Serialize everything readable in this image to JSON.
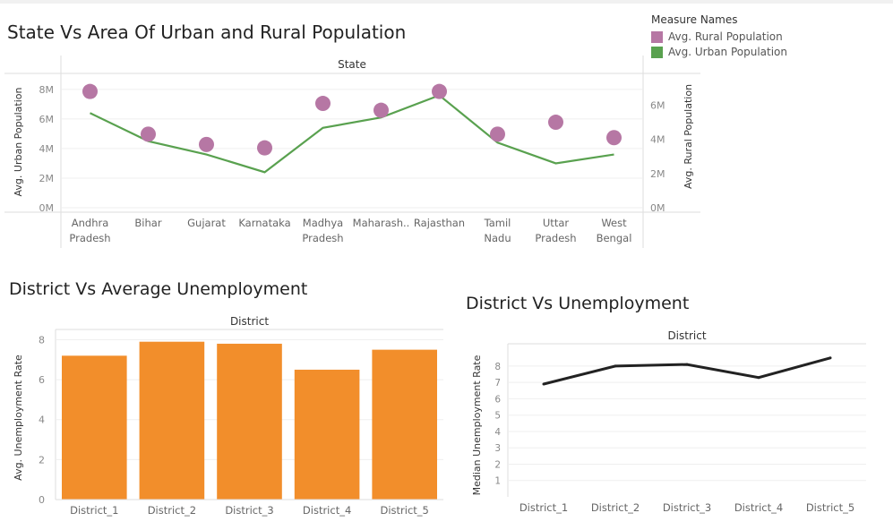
{
  "colors": {
    "rural": "#b677a4",
    "urban": "#59a14f",
    "bar": "#f28e2b",
    "median_line": "#222222"
  },
  "legend": {
    "title": "Measure Names",
    "items": [
      {
        "label": "Avg. Rural Population",
        "color": "#b677a4"
      },
      {
        "label": "Avg. Urban Population",
        "color": "#59a14f"
      }
    ]
  },
  "chart_data": [
    {
      "type": "line",
      "title": "State Vs Area  Of Urban and Rural Population",
      "header": "State",
      "ylabel": "Avg. Urban Population",
      "y2label": "Avg. Rural Population",
      "categories": [
        [
          "Andhra",
          "Pradesh"
        ],
        [
          "Bihar"
        ],
        [
          "Gujarat"
        ],
        [
          "Karnataka"
        ],
        [
          "Madhya",
          "Pradesh"
        ],
        [
          "Maharash.."
        ],
        [
          "Rajasthan"
        ],
        [
          "Tamil",
          "Nadu"
        ],
        [
          "Uttar",
          "Pradesh"
        ],
        [
          "West",
          "Bengal"
        ]
      ],
      "ylim": [
        0,
        8.9
      ],
      "yticks": [
        {
          "v": 0,
          "label": "0M"
        },
        {
          "v": 2,
          "label": "2M"
        },
        {
          "v": 4,
          "label": "4M"
        },
        {
          "v": 6,
          "label": "6M"
        },
        {
          "v": 8,
          "label": "8M"
        }
      ],
      "y2lim": [
        0,
        7.7
      ],
      "y2ticks": [
        {
          "v": 0,
          "label": "0M"
        },
        {
          "v": 2,
          "label": "2M"
        },
        {
          "v": 4,
          "label": "4M"
        },
        {
          "v": 6,
          "label": "6M"
        }
      ],
      "series": [
        {
          "name": "Avg. Urban Population",
          "axis": "left",
          "mark": "line",
          "values": [
            6.4,
            4.5,
            3.6,
            2.4,
            5.4,
            6.1,
            7.6,
            4.4,
            3.0,
            3.6
          ]
        },
        {
          "name": "Avg. Rural Population",
          "axis": "right",
          "mark": "circle",
          "values": [
            6.8,
            4.3,
            3.7,
            3.5,
            6.1,
            5.7,
            6.8,
            4.3,
            5.0,
            4.1
          ]
        }
      ],
      "grid": true
    },
    {
      "type": "bar",
      "title": "District Vs Average Unemployment",
      "header": "District",
      "ylabel": "Avg. Unemployment Rate",
      "categories": [
        "District_1",
        "District_2",
        "District_3",
        "District_4",
        "District_5"
      ],
      "values": [
        7.2,
        7.9,
        7.8,
        6.5,
        7.5
      ],
      "ylim": [
        0,
        8.2
      ],
      "yticks": [
        0,
        2,
        4,
        6,
        8
      ],
      "grid": true
    },
    {
      "type": "line",
      "title": "District Vs Unemployment",
      "header": "District",
      "ylabel": "Median Unemployment Rate",
      "categories": [
        "District_1",
        "District_2",
        "District_3",
        "District_4",
        "District_5"
      ],
      "values": [
        6.9,
        8.0,
        8.1,
        7.3,
        8.5
      ],
      "ylim": [
        0,
        9.2
      ],
      "yticks": [
        1,
        2,
        3,
        4,
        5,
        6,
        7,
        8
      ],
      "grid": true
    }
  ]
}
